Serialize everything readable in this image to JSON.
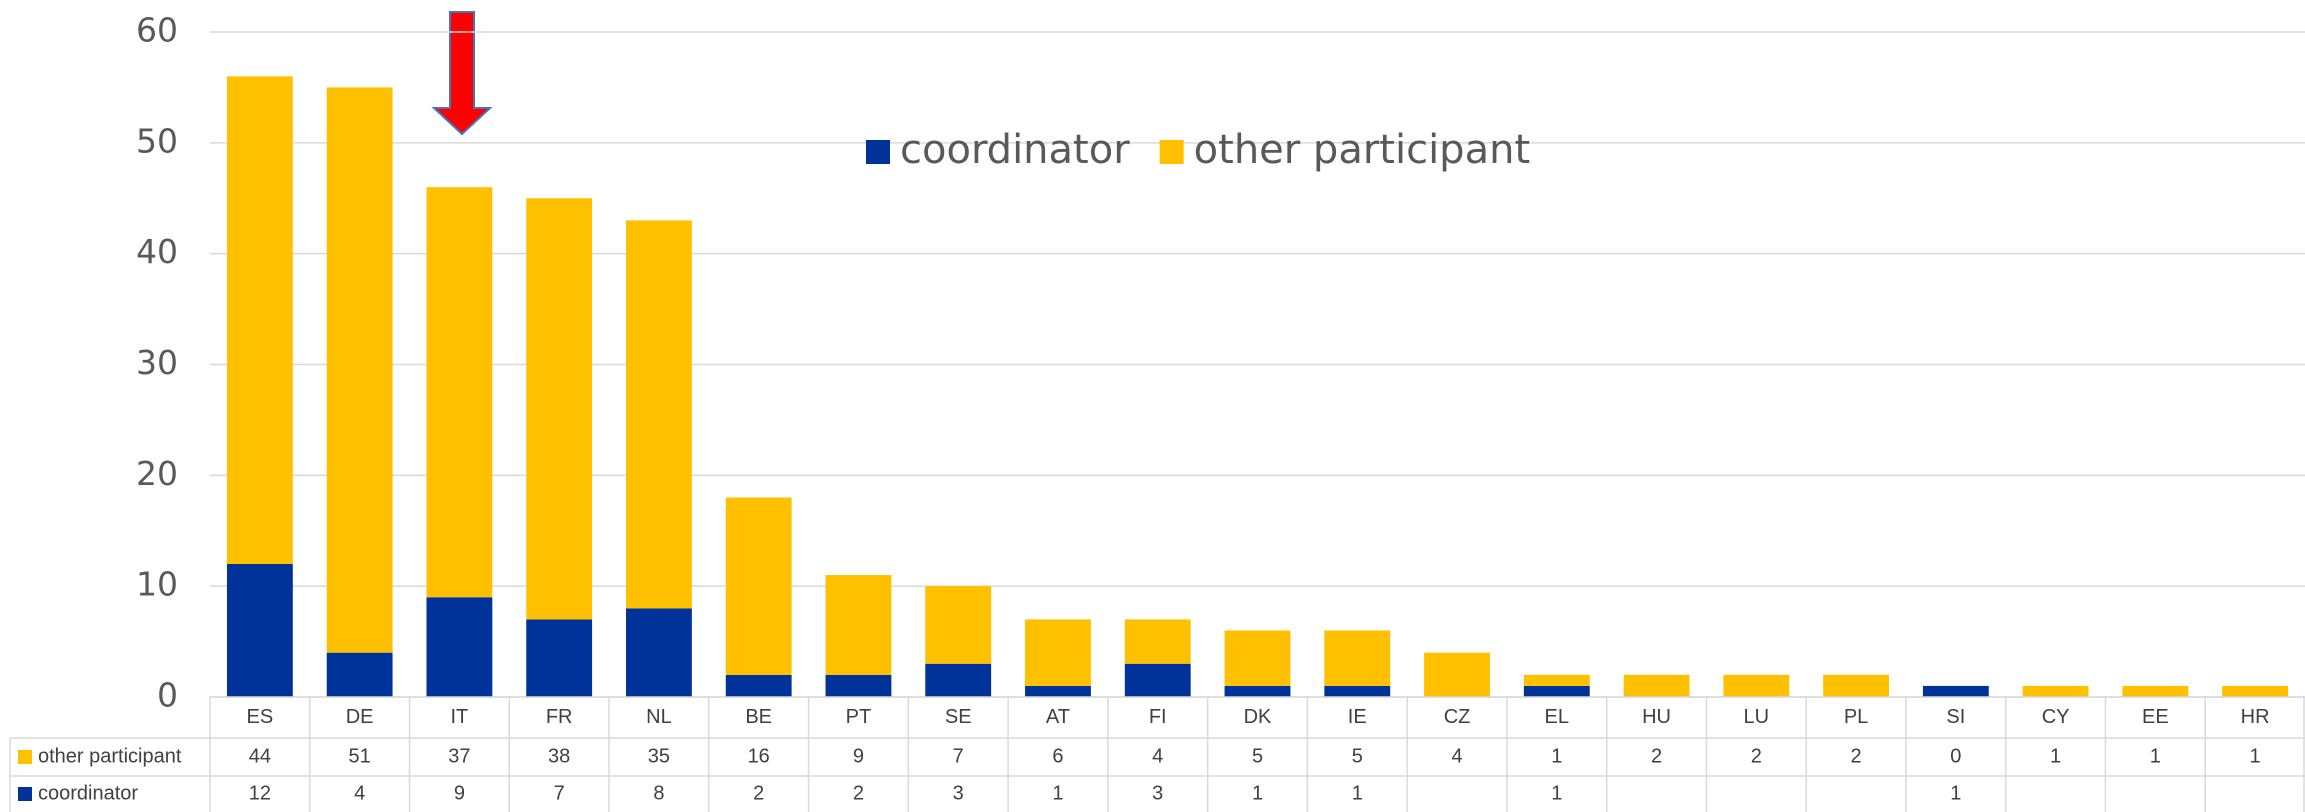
{
  "chart_data": {
    "type": "stacked_bar",
    "categories": [
      "ES",
      "DE",
      "IT",
      "FR",
      "NL",
      "BE",
      "PT",
      "SE",
      "AT",
      "FI",
      "DK",
      "IE",
      "CZ",
      "EL",
      "HU",
      "LU",
      "PL",
      "SI",
      "CY",
      "EE",
      "HR"
    ],
    "series": [
      {
        "name": "coordinator",
        "color": "#003399",
        "values": [
          12,
          4,
          9,
          7,
          8,
          2,
          2,
          3,
          1,
          3,
          1,
          1,
          null,
          1,
          null,
          null,
          null,
          1,
          null,
          null,
          null
        ]
      },
      {
        "name": "other participant",
        "color": "#ffc000",
        "values": [
          44,
          51,
          37,
          38,
          35,
          16,
          9,
          7,
          6,
          4,
          5,
          5,
          4,
          1,
          2,
          2,
          2,
          0,
          1,
          1,
          1
        ]
      }
    ],
    "ylim": [
      0,
      60
    ],
    "yticks": [
      0,
      10,
      20,
      30,
      40,
      50,
      60
    ],
    "grid": true,
    "legend": "top"
  }
}
